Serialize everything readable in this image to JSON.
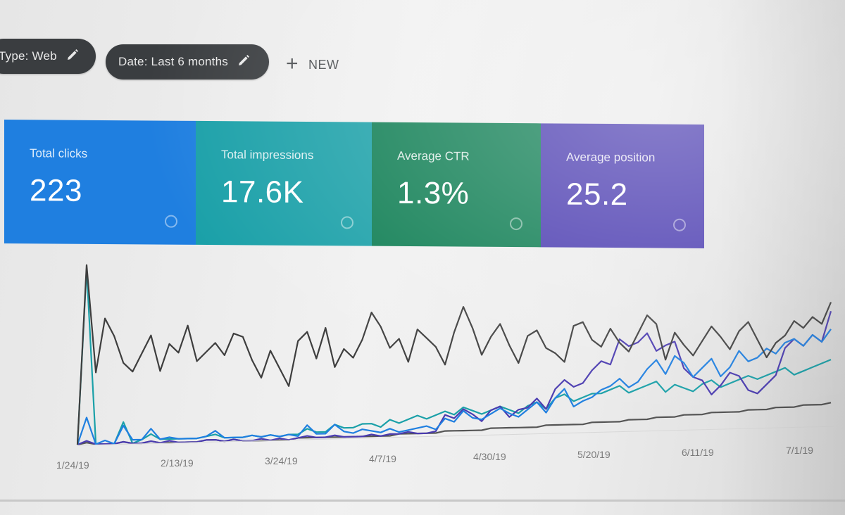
{
  "filters": {
    "type_label": "Type: Web",
    "date_label": "Date: Last 6 months",
    "new_label": "NEW"
  },
  "metrics": [
    {
      "label": "Total clicks",
      "value": "223",
      "color": "#1f7fe0"
    },
    {
      "label": "Total impressions",
      "value": "17.6K",
      "color": "#1aa0a8"
    },
    {
      "label": "Average CTR",
      "value": "1.3%",
      "color": "#0d7d52"
    },
    {
      "label": "Average position",
      "value": "25.2",
      "color": "#4a3bb0"
    }
  ],
  "chart_data": {
    "type": "line",
    "x_tick_labels": [
      "1/24/19",
      "2/13/19",
      "3/24/19",
      "4/7/19",
      "4/30/19",
      "5/20/19",
      "6/11/19",
      "7/1/19"
    ],
    "series": [
      {
        "color": "#3e3e3e",
        "values": [
          0,
          100,
          40,
          70,
          60,
          45,
          40,
          50,
          60,
          40,
          55,
          50,
          65,
          45,
          50,
          55,
          48,
          60,
          58,
          45,
          35,
          50,
          40,
          30,
          55,
          60,
          45,
          62,
          40,
          50,
          45,
          55,
          70,
          62,
          50,
          55,
          42,
          60,
          55,
          50,
          40,
          58,
          72,
          60,
          45,
          55,
          62,
          50,
          40,
          55,
          58,
          48,
          45,
          40,
          60,
          62,
          52,
          48,
          58,
          50,
          45,
          55,
          65,
          60,
          40,
          55,
          48,
          42,
          50,
          58,
          52,
          45,
          55,
          60,
          50,
          40,
          48,
          52,
          60,
          56,
          62,
          58,
          70
        ]
      },
      {
        "color": "#1f7fe0",
        "values": [
          0,
          15,
          0,
          2,
          0,
          10,
          2,
          2,
          8,
          2,
          3,
          2,
          2,
          2,
          3,
          6,
          2,
          2,
          2,
          3,
          2,
          3,
          2,
          3,
          2,
          8,
          3,
          3,
          8,
          4,
          3,
          5,
          4,
          3,
          5,
          3,
          4,
          5,
          6,
          4,
          10,
          8,
          14,
          10,
          9,
          12,
          15,
          12,
          10,
          14,
          18,
          12,
          20,
          25,
          15,
          18,
          20,
          24,
          26,
          30,
          25,
          28,
          35,
          40,
          32,
          42,
          38,
          30,
          35,
          40,
          30,
          35,
          44,
          38,
          40,
          45,
          42,
          48,
          50,
          46,
          52,
          48,
          55
        ]
      },
      {
        "color": "#4a3bb0",
        "values": [
          0,
          2,
          0,
          0,
          0,
          1,
          0,
          0,
          1,
          0,
          1,
          0,
          0,
          0,
          1,
          1,
          0,
          1,
          0,
          0,
          1,
          0,
          1,
          0,
          1,
          2,
          1,
          1,
          2,
          1,
          1,
          1,
          2,
          1,
          2,
          2,
          3,
          2,
          2,
          3,
          12,
          10,
          15,
          12,
          8,
          14,
          16,
          10,
          14,
          15,
          20,
          14,
          25,
          30,
          26,
          28,
          35,
          40,
          38,
          52,
          48,
          50,
          55,
          45,
          48,
          50,
          35,
          30,
          28,
          20,
          25,
          32,
          30,
          22,
          20,
          25,
          30,
          45,
          50,
          46,
          52,
          48,
          65
        ]
      },
      {
        "color": "#1aa0a8",
        "values": [
          0,
          98,
          0,
          0,
          0,
          12,
          0,
          2,
          5,
          2,
          2,
          2,
          2,
          2,
          3,
          4,
          2,
          2,
          2,
          3,
          2,
          3,
          2,
          3,
          3,
          6,
          4,
          4,
          8,
          6,
          6,
          8,
          8,
          6,
          10,
          8,
          10,
          12,
          10,
          12,
          14,
          12,
          16,
          14,
          12,
          14,
          16,
          14,
          12,
          16,
          18,
          14,
          20,
          22,
          18,
          20,
          22,
          22,
          24,
          26,
          22,
          24,
          26,
          28,
          22,
          26,
          24,
          22,
          26,
          28,
          24,
          26,
          28,
          30,
          28,
          30,
          32,
          34,
          30,
          32,
          34,
          36,
          38
        ]
      },
      {
        "color": "#555555",
        "values": [
          0,
          1,
          0,
          0,
          0,
          1,
          0,
          0,
          1,
          0,
          0,
          0,
          0,
          0,
          1,
          1,
          0,
          1,
          0,
          0,
          0,
          0,
          0,
          0,
          1,
          1,
          1,
          1,
          1,
          1,
          1,
          1,
          1,
          1,
          1,
          2,
          2,
          2,
          2,
          2,
          3,
          3,
          3,
          3,
          3,
          4,
          4,
          4,
          4,
          4,
          4,
          5,
          5,
          5,
          5,
          5,
          6,
          6,
          6,
          6,
          7,
          7,
          7,
          8,
          8,
          8,
          9,
          9,
          9,
          10,
          10,
          10,
          10,
          11,
          11,
          11,
          12,
          12,
          12,
          13,
          13,
          13,
          14
        ]
      }
    ]
  }
}
